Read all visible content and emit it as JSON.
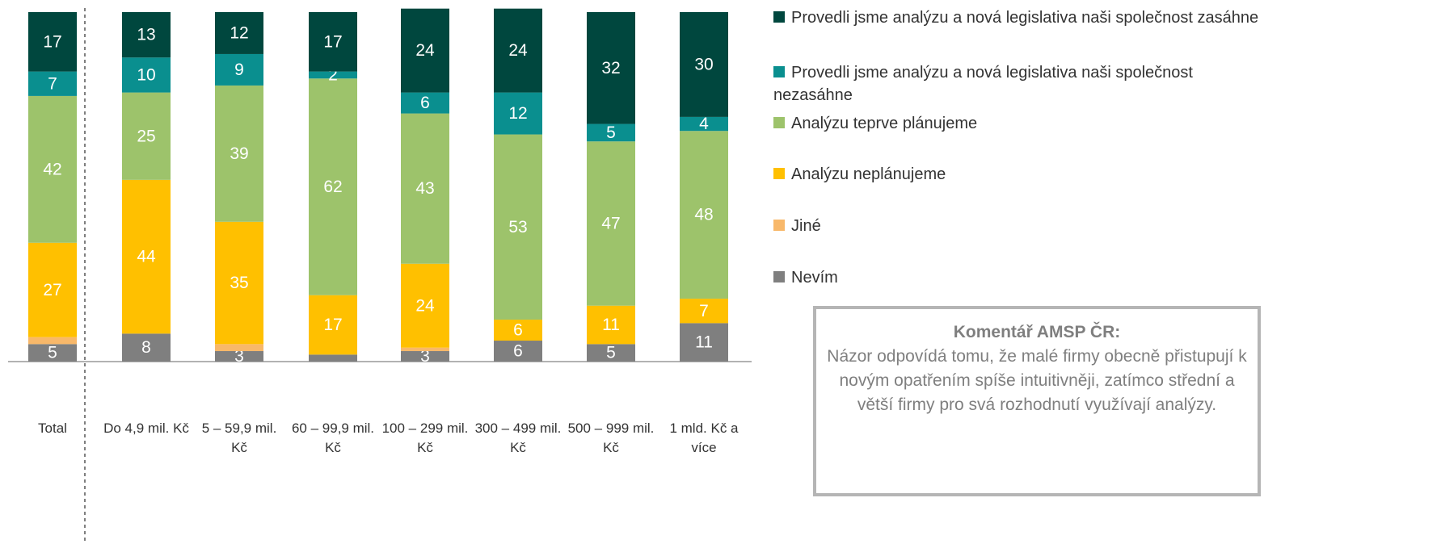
{
  "chart_data": {
    "type": "stacked-bar",
    "categories": [
      "Total",
      "Do 4,9 mil. Kč",
      "5 – 59,9 mil. Kč",
      "60 – 99,9 mil. Kč",
      "100 – 299 mil. Kč",
      "300 – 499 mil. Kč",
      "500 – 999 mil. Kč",
      "1 mld. Kč a více"
    ],
    "ylim": [
      0,
      100
    ],
    "series": [
      {
        "name": "Provedli jsme analýzu a nová legislativa naši společnost zasáhne",
        "color": "#00473e",
        "values": [
          17,
          13,
          12,
          17,
          24,
          24,
          32,
          30
        ]
      },
      {
        "name": "Provedli jsme analýzu a nová legislativa naši společnost nezasáhne",
        "color": "#0a8f8f",
        "values": [
          7,
          10,
          9,
          2,
          6,
          12,
          5,
          4
        ]
      },
      {
        "name": "Analýzu teprve plánujeme",
        "color": "#9dc36b",
        "values": [
          42,
          25,
          39,
          62,
          43,
          53,
          47,
          48
        ]
      },
      {
        "name": "Analýzu neplánujeme",
        "color": "#ffc000",
        "values": [
          27,
          44,
          35,
          17,
          24,
          6,
          11,
          7
        ]
      },
      {
        "name": "Jiné",
        "color": "#f8b86a",
        "values": [
          2,
          0,
          2,
          0,
          1,
          0,
          0,
          0
        ],
        "value_labels": [
          null,
          null,
          null,
          null,
          null,
          null,
          null,
          null
        ]
      },
      {
        "name": "Nevím",
        "color": "#7f7f7f",
        "values": [
          5,
          8,
          3,
          2,
          3,
          6,
          5,
          11
        ],
        "value_labels": [
          "5",
          "8",
          "3",
          null,
          "3",
          "6",
          "5",
          "11"
        ]
      }
    ]
  },
  "comment": {
    "title": "Komentář AMSP ČR:",
    "text": "Názor odpovídá tomu, že malé firmy obecně přistupují k novým opatřením spíše intuitivněji, zatímco střední a větší firmy pro svá rozhodnutí využívají analýzy."
  }
}
